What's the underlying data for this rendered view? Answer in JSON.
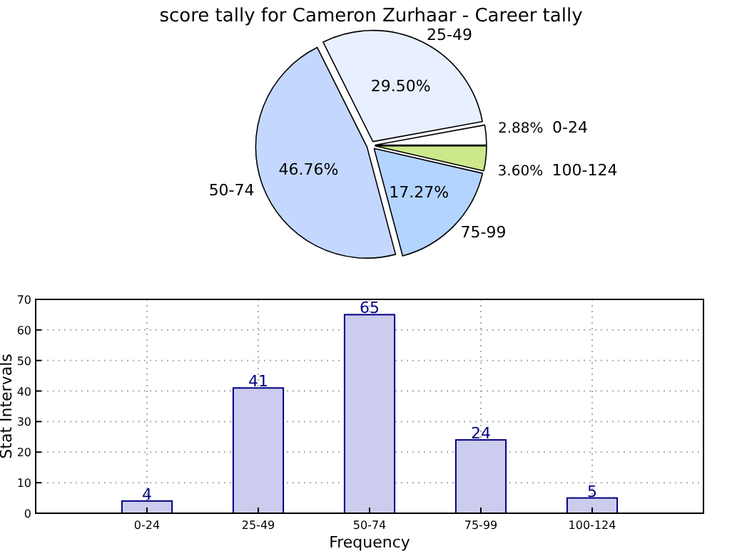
{
  "chart_data": [
    {
      "type": "pie",
      "title": "score tally for Cameron Zurhaar - Career tally",
      "categories": [
        "0-24",
        "25-49",
        "50-74",
        "75-99",
        "100-124"
      ],
      "values": [
        2.88,
        29.5,
        46.76,
        17.27,
        3.6
      ],
      "colors": [
        "#ffffff",
        "#e8f0ff",
        "#c4d8ff",
        "#b3d4ff",
        "#cce88a"
      ],
      "value_labels": [
        "2.88%",
        "29.50%",
        "46.76%",
        "17.27%",
        "3.60%"
      ]
    },
    {
      "type": "bar",
      "categories": [
        "0-24",
        "25-49",
        "50-74",
        "75-99",
        "100-124"
      ],
      "values": [
        4,
        41,
        65,
        24,
        5
      ],
      "color": "#ccccee",
      "xlabel": "Frequency",
      "ylabel": "Stat Intervals",
      "ylim": [
        0,
        70
      ],
      "yticks": [
        0,
        10,
        20,
        30,
        40,
        50,
        60,
        70
      ],
      "grid": true,
      "data_labels": true
    }
  ]
}
